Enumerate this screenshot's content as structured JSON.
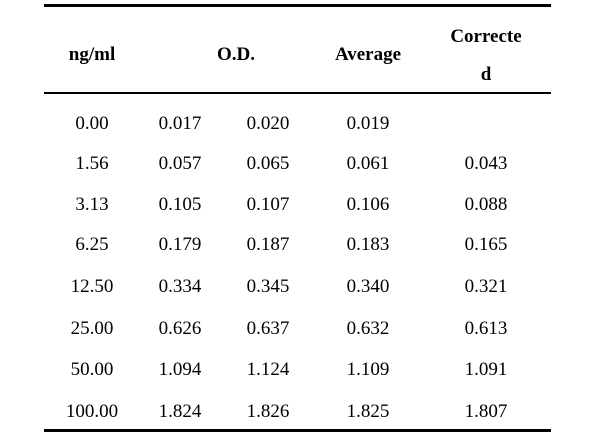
{
  "table": {
    "headers": {
      "concentration": "ng/ml",
      "od": "O.D.",
      "average": "Average",
      "corrected_line1": "Correcte",
      "corrected_line2": "d"
    },
    "rows": [
      [
        "0.00",
        "0.017",
        "0.020",
        "0.019",
        ""
      ],
      [
        "1.56",
        "0.057",
        "0.065",
        "0.061",
        "0.043"
      ],
      [
        "3.13",
        "0.105",
        "0.107",
        "0.106",
        "0.088"
      ],
      [
        "6.25",
        "0.179",
        "0.187",
        "0.183",
        "0.165"
      ],
      [
        "12.50",
        "0.334",
        "0.345",
        "0.340",
        "0.321"
      ],
      [
        "25.00",
        "0.626",
        "0.637",
        "0.632",
        "0.613"
      ],
      [
        "50.00",
        "1.094",
        "1.124",
        "1.109",
        "1.091"
      ],
      [
        "100.00",
        "1.824",
        "1.826",
        "1.825",
        "1.807"
      ]
    ]
  }
}
